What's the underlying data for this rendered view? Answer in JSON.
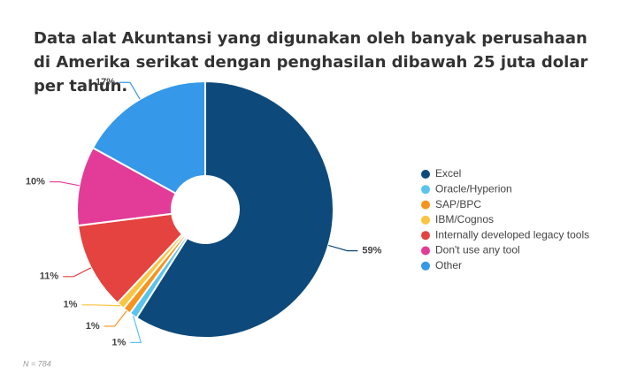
{
  "chart_data": {
    "type": "donut",
    "title": "Data alat Akuntansi yang digunakan oleh banyak perusahaan di Amerika serikat dengan penghasilan dibawah 25 juta dolar per tahun.",
    "categories": [
      "Excel",
      "Oracle/Hyperion",
      "SAP/BPC",
      "IBM/Cognos",
      "Internally developed legacy tools",
      "Don't use any tool",
      "Other"
    ],
    "values": [
      59,
      1,
      1,
      1,
      11,
      10,
      17
    ],
    "value_labels": [
      "59%",
      "1%",
      "1%",
      "1%",
      "11%",
      "10%",
      "17%"
    ],
    "colors": [
      "#0d4a7b",
      "#5bc4ec",
      "#f7941d",
      "#f9c440",
      "#e4433f",
      "#e23c98",
      "#3598e8"
    ],
    "note": "N = 784",
    "legend": "right"
  }
}
